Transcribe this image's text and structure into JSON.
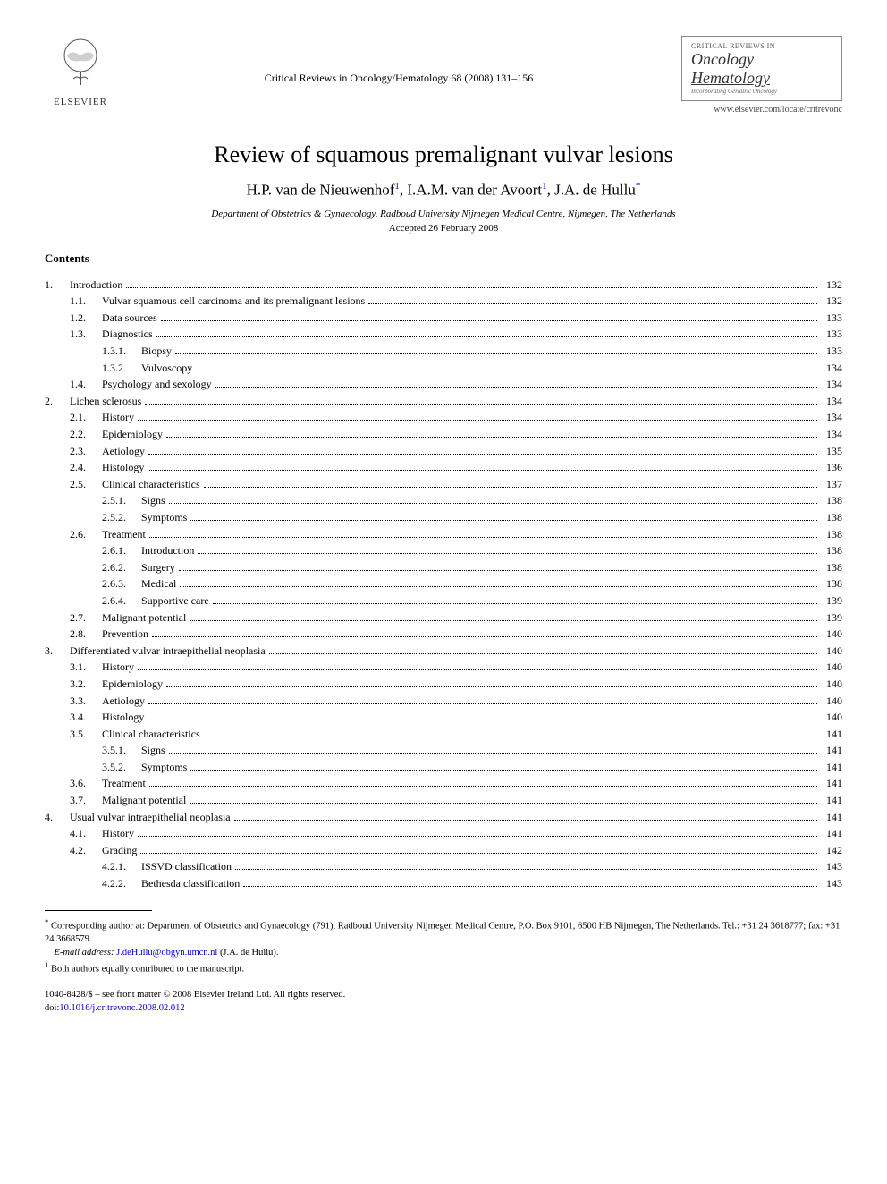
{
  "header": {
    "publisher": "ELSEVIER",
    "citation": "Critical Reviews in Oncology/Hematology 68 (2008) 131–156",
    "journal_small": "CRITICAL REVIEWS IN",
    "journal_line1": "Oncology",
    "journal_line2": "Hematology",
    "journal_sub": "Incorporating Geriatric Oncology",
    "journal_url": "www.elsevier.com/locate/critrevonc"
  },
  "article": {
    "title": "Review of squamous premalignant vulvar lesions",
    "authors_html": "H.P. van de Nieuwenhof",
    "author1_sup": "1",
    "author2": ", I.A.M. van der Avoort",
    "author2_sup": "1",
    "author3": ", J.A. de Hullu",
    "author3_sup": "*",
    "affiliation": "Department of Obstetrics & Gynaecology, Radboud University Nijmegen Medical Centre, Nijmegen, The Netherlands",
    "accepted": "Accepted 26 February 2008"
  },
  "contents_heading": "Contents",
  "toc": [
    {
      "level": 1,
      "num": "1.",
      "label": "Introduction",
      "page": "132"
    },
    {
      "level": 2,
      "num": "1.1.",
      "label": "Vulvar squamous cell carcinoma and its premalignant lesions",
      "page": "132"
    },
    {
      "level": 2,
      "num": "1.2.",
      "label": "Data sources",
      "page": "133"
    },
    {
      "level": 2,
      "num": "1.3.",
      "label": "Diagnostics",
      "page": "133"
    },
    {
      "level": 3,
      "num": "1.3.1.",
      "label": "Biopsy",
      "page": "133"
    },
    {
      "level": 3,
      "num": "1.3.2.",
      "label": "Vulvoscopy",
      "page": "134"
    },
    {
      "level": 2,
      "num": "1.4.",
      "label": "Psychology and sexology",
      "page": "134"
    },
    {
      "level": 1,
      "num": "2.",
      "label": "Lichen sclerosus",
      "page": "134"
    },
    {
      "level": 2,
      "num": "2.1.",
      "label": "History",
      "page": "134"
    },
    {
      "level": 2,
      "num": "2.2.",
      "label": "Epidemiology",
      "page": "134"
    },
    {
      "level": 2,
      "num": "2.3.",
      "label": "Aetiology",
      "page": "135"
    },
    {
      "level": 2,
      "num": "2.4.",
      "label": "Histology",
      "page": "136"
    },
    {
      "level": 2,
      "num": "2.5.",
      "label": "Clinical characteristics",
      "page": "137"
    },
    {
      "level": 3,
      "num": "2.5.1.",
      "label": "Signs",
      "page": "138"
    },
    {
      "level": 3,
      "num": "2.5.2.",
      "label": "Symptoms",
      "page": "138"
    },
    {
      "level": 2,
      "num": "2.6.",
      "label": "Treatment",
      "page": "138"
    },
    {
      "level": 3,
      "num": "2.6.1.",
      "label": "Introduction",
      "page": "138"
    },
    {
      "level": 3,
      "num": "2.6.2.",
      "label": "Surgery",
      "page": "138"
    },
    {
      "level": 3,
      "num": "2.6.3.",
      "label": "Medical",
      "page": "138"
    },
    {
      "level": 3,
      "num": "2.6.4.",
      "label": "Supportive care",
      "page": "139"
    },
    {
      "level": 2,
      "num": "2.7.",
      "label": "Malignant potential",
      "page": "139"
    },
    {
      "level": 2,
      "num": "2.8.",
      "label": "Prevention",
      "page": "140"
    },
    {
      "level": 1,
      "num": "3.",
      "label": "Differentiated vulvar intraepithelial neoplasia",
      "page": "140"
    },
    {
      "level": 2,
      "num": "3.1.",
      "label": "History",
      "page": "140"
    },
    {
      "level": 2,
      "num": "3.2.",
      "label": "Epidemiology",
      "page": "140"
    },
    {
      "level": 2,
      "num": "3.3.",
      "label": "Aetiology",
      "page": "140"
    },
    {
      "level": 2,
      "num": "3.4.",
      "label": "Histology",
      "page": "140"
    },
    {
      "level": 2,
      "num": "3.5.",
      "label": "Clinical characteristics",
      "page": "141"
    },
    {
      "level": 3,
      "num": "3.5.1.",
      "label": "Signs",
      "page": "141"
    },
    {
      "level": 3,
      "num": "3.5.2.",
      "label": "Symptoms",
      "page": "141"
    },
    {
      "level": 2,
      "num": "3.6.",
      "label": "Treatment",
      "page": "141"
    },
    {
      "level": 2,
      "num": "3.7.",
      "label": "Malignant potential",
      "page": "141"
    },
    {
      "level": 1,
      "num": "4.",
      "label": "Usual vulvar intraepithelial neoplasia",
      "page": "141"
    },
    {
      "level": 2,
      "num": "4.1.",
      "label": "History",
      "page": "141"
    },
    {
      "level": 2,
      "num": "4.2.",
      "label": "Grading",
      "page": "142"
    },
    {
      "level": 3,
      "num": "4.2.1.",
      "label": "ISSVD classification",
      "page": "143"
    },
    {
      "level": 3,
      "num": "4.2.2.",
      "label": "Bethesda classification",
      "page": "143"
    }
  ],
  "footnotes": {
    "corr_marker": "*",
    "corr_text": " Corresponding author at: Department of Obstetrics and Gynaecology (791), Radboud University Nijmegen Medical Centre, P.O. Box 9101, 6500 HB Nijmegen, The Netherlands. Tel.: +31 24 3618777; fax: +31 24 3668579.",
    "email_label": "E-mail address: ",
    "email": "J.deHullu@obgyn.umcn.nl",
    "email_suffix": " (J.A. de Hullu).",
    "equal_marker": "1",
    "equal_text": " Both authors equally contributed to the manuscript."
  },
  "copyright": {
    "line1": "1040-8428/$ – see front matter © 2008 Elsevier Ireland Ltd. All rights reserved.",
    "doi_label": "doi:",
    "doi": "10.1016/j.critrevonc.2008.02.012"
  }
}
